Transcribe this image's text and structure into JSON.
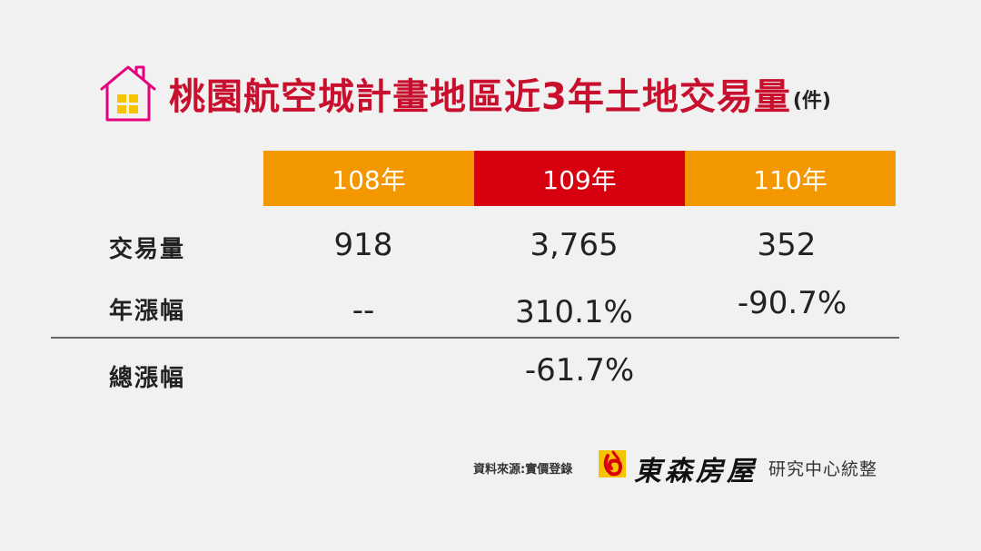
{
  "header": {
    "title": "桃園航空城計畫地區近3年土地交易量",
    "unit": "(件)"
  },
  "colors": {
    "title": "#c8102e",
    "year_108": "#f39800",
    "year_109": "#d7000f",
    "year_110": "#f39800",
    "house_icon": "#e6007e",
    "window": "#f6c400"
  },
  "chart_data": {
    "type": "table",
    "title": "桃園航空城計畫地區近3年土地交易量(件)",
    "columns": [
      "108年",
      "109年",
      "110年"
    ],
    "rows": [
      {
        "label": "交易量",
        "values": [
          "918",
          "3,765",
          "352"
        ]
      },
      {
        "label": "年漲幅",
        "values": [
          "--",
          "310.1%",
          "-90.7%"
        ]
      }
    ],
    "summary": {
      "label": "總漲幅",
      "value": "-61.7%"
    }
  },
  "footer": {
    "source": "資料來源:實價登錄",
    "logo_text": "東森房屋",
    "org": "研究中心統整"
  }
}
